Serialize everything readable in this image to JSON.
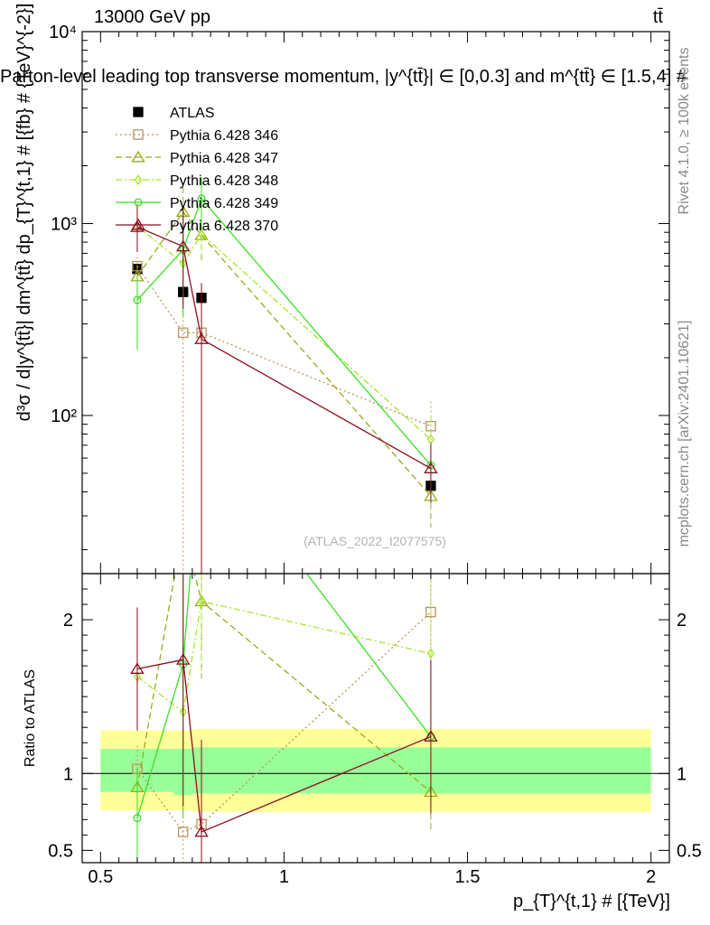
{
  "header": {
    "energy_label": "13000 GeV pp",
    "process_label": "tt̄",
    "title": "Parton-level leading top transverse momentum, |y^{tt̄}| ∈ [0,0.3] and m^{tt̄} ∈ [1.5,4] #",
    "watermark": "(ATLAS_2022_I2077575)",
    "side_rivet": "Rivet 4.1.0, ≥ 100k events",
    "side_mcplots": "mcplots.cern.ch [arXiv:2401.10621]"
  },
  "colors": {
    "atlas": "#000000",
    "p346": "#b8955a",
    "p347": "#9aaa1a",
    "p348": "#a6e62a",
    "p349": "#3ae024",
    "p370": "#8b0d20",
    "band_inner": "#99ff99",
    "band_outer": "#ffff99"
  },
  "chart_data": {
    "type": "scatter",
    "main": {
      "ylabel": "d³σ / d|y^{tt̄}| dm^{tt̄} dp_{T}^{t,1} # [{fb} # {TeV}^{-2}]",
      "yscale": "log",
      "ylim": [
        15,
        10000
      ],
      "yticks": [
        {
          "value": 100,
          "label": "10²"
        },
        {
          "value": 1000,
          "label": "10³"
        },
        {
          "value": 10000,
          "label": "10⁴"
        }
      ]
    },
    "ratio": {
      "ylabel": "Ratio to ATLAS",
      "ylim": [
        0.42,
        2.3
      ],
      "yticks": [
        {
          "value": 0.5,
          "label": "0.5"
        },
        {
          "value": 1,
          "label": "1"
        },
        {
          "value": 2,
          "label": "2"
        }
      ]
    },
    "xlabel": "p_{T}^{t,1} # [{TeV}]",
    "xlim": [
      0.45,
      2.05
    ],
    "xticks": [
      {
        "value": 0.5,
        "label": "0.5"
      },
      {
        "value": 1,
        "label": "1"
      },
      {
        "value": 1.5,
        "label": "1.5"
      },
      {
        "value": 2,
        "label": "2"
      }
    ],
    "band": {
      "edges": [
        0.5,
        0.7,
        0.75,
        2.0
      ],
      "inner": [
        [
          0.88,
          1.16
        ],
        [
          0.86,
          1.16
        ],
        [
          0.87,
          1.17
        ]
      ],
      "outer": [
        [
          0.76,
          1.28
        ],
        [
          0.76,
          1.28
        ],
        [
          0.75,
          1.29
        ]
      ]
    },
    "series": [
      {
        "name": "ATLAS",
        "key": "atlas",
        "marker": "filled-square",
        "dash": "",
        "x": [
          0.6,
          0.725,
          0.775,
          1.4
        ],
        "y": [
          580,
          440,
          410,
          43
        ],
        "err_lo": [
          0,
          0,
          0,
          0
        ],
        "err_hi": [
          0,
          0,
          0,
          0
        ],
        "ratio": [
          1,
          1,
          1,
          1
        ],
        "ratio_err_lo": [
          0,
          0,
          0,
          0
        ],
        "ratio_err_hi": [
          0,
          0,
          0,
          0
        ]
      },
      {
        "name": "Pythia 6.428 346",
        "key": "p346",
        "marker": "open-square",
        "dash": "2,3",
        "x": [
          0.6,
          0.725,
          0.775,
          1.4
        ],
        "y": [
          600,
          270,
          270,
          88
        ],
        "err_lo": [
          70,
          260,
          80,
          20
        ],
        "err_hi": [
          70,
          300,
          80,
          30
        ],
        "ratio": [
          1.03,
          0.62,
          0.67,
          2.05
        ],
        "ratio_err_lo": [
          0.15,
          0.6,
          0.2,
          0.45
        ],
        "ratio_err_hi": [
          0.15,
          0.6,
          0.2,
          0.5
        ]
      },
      {
        "name": "Pythia 6.428 347",
        "key": "p347",
        "marker": "open-triangle",
        "dash": "7,4",
        "x": [
          0.6,
          0.725,
          0.775,
          1.4
        ],
        "y": [
          530,
          1150,
          870,
          38
        ],
        "err_lo": [
          70,
          400,
          250,
          12
        ],
        "err_hi": [
          80,
          400,
          250,
          12
        ],
        "ratio": [
          0.91,
          2.6,
          2.12,
          0.88
        ],
        "ratio_err_lo": [
          0.12,
          0.9,
          0.5,
          0.25
        ],
        "ratio_err_hi": [
          0.12,
          0.9,
          0.5,
          0.25
        ]
      },
      {
        "name": "Pythia 6.428 348",
        "key": "p348",
        "marker": "open-diamond",
        "dash": "7,3,2,3",
        "x": [
          0.6,
          0.725,
          0.775,
          1.4
        ],
        "y": [
          970,
          620,
          880,
          75
        ],
        "err_lo": [
          130,
          300,
          200,
          25
        ],
        "err_hi": [
          140,
          300,
          200,
          25
        ],
        "ratio": [
          1.63,
          1.4,
          2.12,
          1.78
        ],
        "ratio_err_lo": [
          0.25,
          0.7,
          0.45,
          0.9
        ],
        "ratio_err_hi": [
          0.25,
          0.7,
          0.45,
          0.9
        ]
      },
      {
        "name": "Pythia 6.428 349",
        "key": "p349",
        "marker": "open-circle",
        "dash": "",
        "x": [
          0.6,
          0.725,
          0.775,
          1.4
        ],
        "y": [
          400,
          730,
          1350,
          55
        ],
        "err_lo": [
          180,
          400,
          400,
          18
        ],
        "err_hi": [
          120,
          450,
          400,
          18
        ],
        "ratio": [
          0.71,
          1.71,
          3.2,
          1.24
        ],
        "ratio_err_lo": [
          0.33,
          1.0,
          0.9,
          0.45
        ],
        "ratio_err_hi": [
          0.33,
          1.0,
          0.9,
          0.45
        ]
      },
      {
        "name": "Pythia 6.428 370",
        "key": "p370",
        "marker": "open-triangle",
        "dash": "",
        "x": [
          0.6,
          0.725,
          0.775,
          1.4
        ],
        "y": [
          960,
          760,
          250,
          53
        ],
        "err_lo": [
          250,
          400,
          240,
          18
        ],
        "err_hi": [
          300,
          450,
          240,
          18
        ],
        "ratio": [
          1.68,
          1.74,
          0.62,
          1.24
        ],
        "ratio_err_lo": [
          0.4,
          0.95,
          0.6,
          0.5
        ],
        "ratio_err_hi": [
          0.4,
          0.95,
          0.6,
          0.5
        ]
      }
    ]
  }
}
